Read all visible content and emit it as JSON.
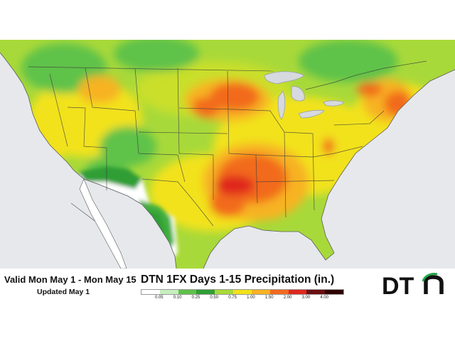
{
  "map": {
    "title": "DTN 1FX Days 1-15 Precipitation (in.)",
    "valid_period": "Valid Mon May 1 - Mon May 15",
    "updated": "Updated May 1",
    "brand": "DTN",
    "legend": {
      "values": [
        "0.05",
        "0.10",
        "0.25",
        "0.50",
        "0.75",
        "1.00",
        "1.50",
        "2.00",
        "3.00",
        "4.00"
      ],
      "colors": [
        "#ffffff",
        "#c8eec0",
        "#5fc24a",
        "#2f9e35",
        "#a8d93a",
        "#f2e21c",
        "#f7b323",
        "#f26a1f",
        "#e0281e",
        "#6a0f10",
        "#300000"
      ]
    },
    "palette": {
      "water": "#e6e8ec",
      "mexico_dry": "#ffffff",
      "border": "#3a3a3a",
      "logo_accent": "#1fa84a"
    }
  }
}
